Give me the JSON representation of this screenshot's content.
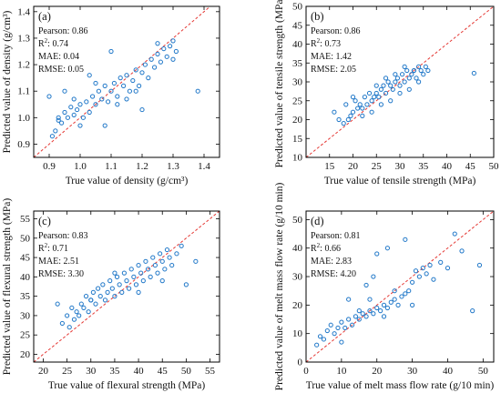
{
  "colors": {
    "points": "#1f77c8",
    "identity_line": "#e53935",
    "axes": "#000000"
  },
  "chart_data": [
    {
      "type": "scatter",
      "panel_label": "(a)",
      "xlabel": "True value of density (g/cm³)",
      "ylabel": "Predicted value of density (g/cm³)",
      "xlim": [
        0.85,
        1.45
      ],
      "ylim": [
        0.85,
        1.42
      ],
      "x_ticks": [
        "0.9",
        "1.0",
        "1.1",
        "1.2",
        "1.3",
        "1.4"
      ],
      "y_ticks": [
        "0.9",
        "1.0",
        "1.1",
        "1.2",
        "1.3",
        "1.4"
      ],
      "stats": {
        "pearson": "Pearson: 0.86",
        "r2_label": "R",
        "r2_value": ": 0.74",
        "mae": "MAE: 0.04",
        "rmse": "RMSE: 0.05"
      },
      "identity_line": true,
      "points": {
        "x": [
          0.91,
          0.92,
          0.93,
          0.94,
          0.95,
          0.96,
          0.97,
          0.98,
          0.99,
          1.0,
          1.01,
          1.02,
          1.03,
          1.04,
          1.05,
          1.06,
          1.07,
          1.08,
          1.09,
          1.1,
          1.11,
          1.12,
          1.13,
          1.14,
          1.15,
          1.16,
          1.17,
          1.18,
          1.19,
          1.2,
          1.21,
          1.22,
          1.23,
          1.24,
          1.25,
          1.26,
          1.27,
          1.28,
          1.29,
          1.3,
          1.31,
          1.38,
          0.9,
          0.95,
          1.0,
          1.05,
          1.1,
          1.15,
          1.2,
          1.25,
          1.3,
          1.08,
          1.12,
          1.18,
          0.93,
          0.98,
          1.03
        ],
        "y": [
          0.93,
          0.95,
          1.0,
          0.98,
          1.02,
          1.0,
          1.04,
          1.01,
          1.03,
          1.05,
          1.0,
          1.06,
          1.02,
          1.08,
          1.05,
          1.1,
          1.07,
          1.12,
          1.06,
          1.1,
          1.13,
          1.08,
          1.15,
          1.12,
          1.16,
          1.1,
          1.14,
          1.18,
          1.12,
          1.17,
          1.2,
          1.15,
          1.22,
          1.19,
          1.24,
          1.21,
          1.26,
          1.23,
          1.27,
          1.29,
          1.25,
          1.1,
          1.08,
          1.1,
          0.97,
          1.13,
          1.25,
          1.07,
          1.03,
          1.28,
          1.22,
          0.97,
          1.05,
          1.1,
          0.99,
          1.07,
          1.16
        ]
      }
    },
    {
      "type": "scatter",
      "panel_label": "(b)",
      "xlabel": "True value of tensile strength (MPa)",
      "ylabel": "Predicted value of tensile strength (MPa)",
      "xlim": [
        10,
        50
      ],
      "ylim": [
        10,
        50
      ],
      "x_ticks": [
        "15",
        "20",
        "25",
        "30",
        "35",
        "40",
        "45",
        "50"
      ],
      "y_ticks": [
        "10",
        "15",
        "20",
        "25",
        "30",
        "35",
        "40",
        "45",
        "50"
      ],
      "stats": {
        "pearson": "Pearson: 0.86",
        "r2_label": "R",
        "r2_value": ": 0.73",
        "mae": "MAE: 1.42",
        "rmse": "RMSE: 2.05"
      },
      "identity_line": true,
      "points": {
        "x": [
          16,
          17,
          18,
          18.5,
          19,
          19.5,
          20,
          20.5,
          21,
          21.5,
          22,
          22.5,
          23,
          23.5,
          24,
          24.5,
          25,
          25.5,
          26,
          26.5,
          27,
          27.5,
          28,
          28.5,
          29,
          29.5,
          30,
          30.5,
          31,
          31.5,
          32,
          32.5,
          33,
          33.5,
          34,
          34.5,
          35,
          35.5,
          36,
          45.8,
          20,
          22,
          24,
          26,
          28,
          30,
          32,
          34,
          25,
          27,
          29,
          31,
          33
        ],
        "y": [
          22,
          20,
          19,
          24,
          20,
          21,
          22,
          25,
          23,
          24,
          23,
          26,
          24,
          27,
          25,
          26,
          27,
          26,
          28,
          29,
          27,
          30,
          29,
          28,
          30,
          31,
          29,
          32,
          30,
          33,
          31,
          32,
          33,
          31,
          34,
          33,
          32,
          34,
          33,
          32.3,
          26,
          21,
          22,
          24,
          25,
          27,
          28,
          30,
          29,
          31,
          32,
          34,
          33
        ]
      }
    },
    {
      "type": "scatter",
      "panel_label": "(c)",
      "xlabel": "True value of flexural strength (MPa)",
      "ylabel": "Predicted value of flexural strength (MPa)",
      "xlim": [
        18,
        57
      ],
      "ylim": [
        18,
        57
      ],
      "x_ticks": [
        "20",
        "25",
        "30",
        "35",
        "40",
        "45",
        "50",
        "55"
      ],
      "y_ticks": [
        "20",
        "25",
        "30",
        "35",
        "40",
        "45",
        "50",
        "55"
      ],
      "stats": {
        "pearson": "Pearson: 0.83",
        "r2_label": "R",
        "r2_value": ": 0.71",
        "mae": "MAE: 2.51",
        "rmse": "RMSE: 3.30"
      },
      "identity_line": true,
      "points": {
        "x": [
          23,
          24,
          25,
          25.5,
          26,
          26.5,
          27,
          27.5,
          28,
          28.5,
          29,
          29.5,
          30,
          30.5,
          31,
          31.5,
          32,
          32.5,
          33,
          33.5,
          34,
          34.5,
          35,
          35.5,
          36,
          36.5,
          37,
          37.5,
          38,
          38.5,
          39,
          39.5,
          40,
          40.5,
          41,
          41.5,
          42,
          42.5,
          43,
          43.5,
          44,
          44.5,
          45,
          45.5,
          46,
          46.5,
          47,
          48,
          49,
          50,
          52,
          30,
          35,
          40,
          45
        ],
        "y": [
          33,
          28,
          30,
          27,
          32,
          29,
          31,
          30,
          33,
          32,
          35,
          31,
          34,
          36,
          33,
          37,
          35,
          38,
          34,
          36,
          39,
          37,
          35,
          40,
          38,
          36,
          41,
          39,
          37,
          42,
          40,
          38,
          43,
          41,
          39,
          44,
          42,
          40,
          45,
          43,
          41,
          46,
          44,
          42,
          47,
          45,
          43,
          46,
          48,
          38,
          44,
          34,
          41,
          36,
          39
        ]
      }
    },
    {
      "type": "scatter",
      "panel_label": "(d)",
      "xlabel": "True value of melt mass flow rate (g/10 min)",
      "ylabel": "Predicted value of melt mass flow rate (g/10 min)",
      "xlim": [
        0,
        53
      ],
      "ylim": [
        0,
        53
      ],
      "x_ticks": [
        "0",
        "10",
        "20",
        "30",
        "40",
        "50"
      ],
      "y_ticks": [
        "0",
        "10",
        "20",
        "30",
        "40",
        "50"
      ],
      "stats": {
        "pearson": "Pearson: 0.81",
        "r2_label": "R",
        "r2_value": ": 0.66",
        "mae": "MAE: 2.83",
        "rmse": "RMSE: 4.20"
      },
      "identity_line": true,
      "points": {
        "x": [
          3,
          4,
          5,
          6,
          7,
          8,
          9,
          10,
          11,
          12,
          13,
          14,
          15,
          16,
          17,
          18,
          19,
          20,
          21,
          22,
          23,
          24,
          25,
          26,
          27,
          28,
          29,
          30,
          31,
          32,
          33,
          34,
          35,
          36,
          38,
          40,
          42,
          44,
          47,
          49,
          12,
          15,
          18,
          20,
          22,
          25,
          28,
          19,
          23,
          17,
          10,
          30
        ],
        "y": [
          6,
          9,
          8,
          11,
          13,
          10,
          12,
          14,
          12,
          15,
          13,
          16,
          15,
          17,
          16,
          18,
          17,
          19,
          18,
          20,
          19,
          21,
          22,
          20,
          23,
          24,
          25,
          28,
          32,
          30,
          33,
          31,
          34,
          29,
          35,
          33,
          45,
          39,
          18,
          34,
          22,
          18,
          22,
          38,
          16,
          25,
          43,
          30,
          40,
          27,
          7,
          20
        ]
      }
    }
  ]
}
